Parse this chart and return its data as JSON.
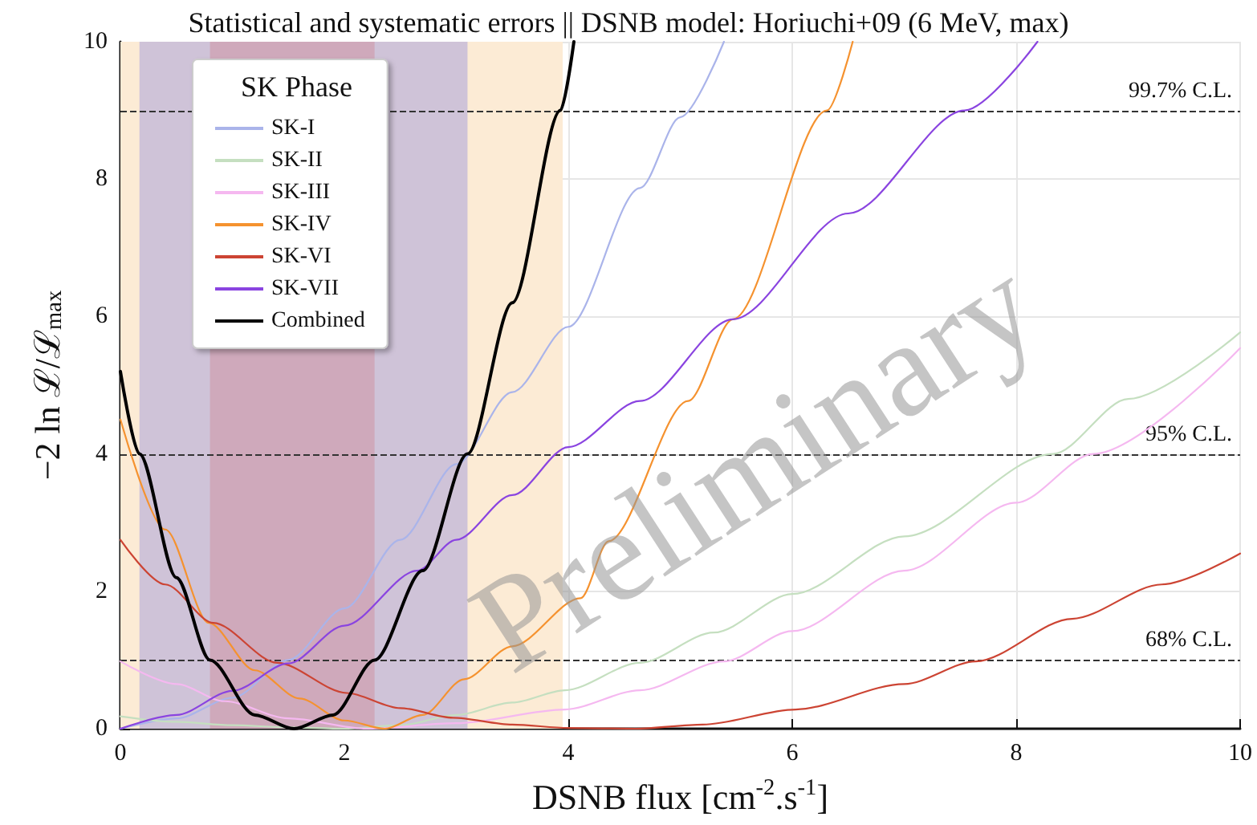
{
  "chart_data": {
    "type": "line",
    "title": "Statistical and systematic errors || DSNB model: Horiuchi+09 (6 MeV, max)",
    "xlabel": "DSNB flux [cm$^{-2}$.s$^{-1}$]",
    "ylabel": "−2 ln ℒ/ℒ$_{max}$",
    "legend_title": "SK Phase",
    "legend": "top left",
    "grid": true,
    "xlim": [
      0,
      10
    ],
    "xticks": [
      0,
      2,
      4,
      6,
      8,
      10
    ],
    "ylim": [
      0,
      10
    ],
    "yticks": [
      0,
      2,
      4,
      6,
      8,
      10
    ],
    "annotations": [
      "Preliminary"
    ],
    "ref_lines": [
      {
        "axis": "y",
        "value": 9,
        "label": "99.7% C.L.",
        "color": "#333333",
        "line_style": "dashed"
      },
      {
        "axis": "y",
        "value": 4,
        "label": "95% C.L.",
        "color": "#333333",
        "line_style": "dashed"
      },
      {
        "axis": "y",
        "value": 1,
        "label": "68% C.L.",
        "color": "#333333",
        "line_style": "dashed"
      }
    ],
    "bands": [
      {
        "axis": "x",
        "from": 0,
        "to": 3.95,
        "color": "#fcebd5"
      },
      {
        "axis": "x",
        "from": 0.17,
        "to": 3.1,
        "color": "#cfc3d8"
      },
      {
        "axis": "x",
        "from": 0.8,
        "to": 2.27,
        "color": "#cfa9bb"
      }
    ],
    "series": [
      {
        "name": "SK-I",
        "color": "#aab4ea",
        "x": [
          0,
          0.5,
          1,
          1.5,
          2,
          2.5,
          3,
          3.5,
          4,
          4.64,
          5,
          5.39
        ],
        "values": [
          0,
          0.15,
          0.45,
          1,
          1.75,
          2.75,
          3.85,
          4.9,
          5.85,
          7.87,
          8.9,
          10
        ]
      },
      {
        "name": "SK-II",
        "color": "#c5dfc0",
        "x": [
          0,
          0.5,
          1,
          1.5,
          2,
          2.5,
          3,
          3.5,
          3.97,
          4.64,
          5.3,
          6,
          7,
          8.33,
          9,
          10
        ],
        "values": [
          0.18,
          0.1,
          0.05,
          0.02,
          0,
          0.05,
          0.2,
          0.38,
          0.56,
          0.96,
          1.4,
          1.96,
          2.8,
          4,
          4.8,
          5.77
        ]
      },
      {
        "name": "SK-III",
        "color": "#f5b8f0",
        "x": [
          0,
          0.5,
          0.93,
          1.5,
          2.2,
          3,
          3.97,
          4.64,
          5.39,
          6,
          7,
          8,
          8.69,
          10
        ],
        "values": [
          0.98,
          0.65,
          0.4,
          0.15,
          0,
          0.08,
          0.28,
          0.56,
          0.98,
          1.42,
          2.3,
          3.29,
          4,
          5.54
        ]
      },
      {
        "name": "SK-IV",
        "color": "#f5922f",
        "x": [
          0,
          0.4,
          0.79,
          1.2,
          1.6,
          2,
          2.36,
          2.7,
          3.07,
          3.5,
          4.11,
          4.36,
          5.07,
          5.47,
          6.31,
          6.54
        ],
        "values": [
          4.5,
          2.9,
          1.54,
          0.85,
          0.44,
          0.12,
          0,
          0.2,
          0.72,
          1.2,
          1.9,
          2.73,
          4.77,
          5.96,
          9,
          10
        ]
      },
      {
        "name": "SK-VI",
        "color": "#cc4433",
        "x": [
          0,
          0.4,
          0.83,
          1.4,
          2.02,
          2.5,
          2.97,
          3.5,
          4,
          4.6,
          5.2,
          6.03,
          7,
          7.64,
          8.5,
          9.3,
          10
        ],
        "values": [
          2.75,
          2.1,
          1.54,
          0.96,
          0.52,
          0.3,
          0.16,
          0.06,
          0.01,
          0,
          0.06,
          0.28,
          0.65,
          0.98,
          1.6,
          2.1,
          2.55
        ]
      },
      {
        "name": "SK-VII",
        "color": "#8a44e0",
        "x": [
          0,
          0.5,
          1,
          1.5,
          2,
          2.65,
          3,
          3.5,
          4,
          4.64,
          5.47,
          6.5,
          7.54,
          8.19
        ],
        "values": [
          0,
          0.2,
          0.55,
          0.95,
          1.5,
          2.3,
          2.75,
          3.4,
          4.1,
          4.77,
          5.96,
          7.5,
          9,
          10
        ]
      },
      {
        "name": "Combined",
        "color": "#000000",
        "x": [
          0,
          0.17,
          0.5,
          0.8,
          1.2,
          1.55,
          1.9,
          2.27,
          2.7,
          3.1,
          3.5,
          3.93,
          4.05
        ],
        "values": [
          5.2,
          4,
          2.2,
          1,
          0.2,
          0,
          0.2,
          1,
          2.3,
          4,
          6.2,
          9,
          10
        ]
      }
    ]
  }
}
